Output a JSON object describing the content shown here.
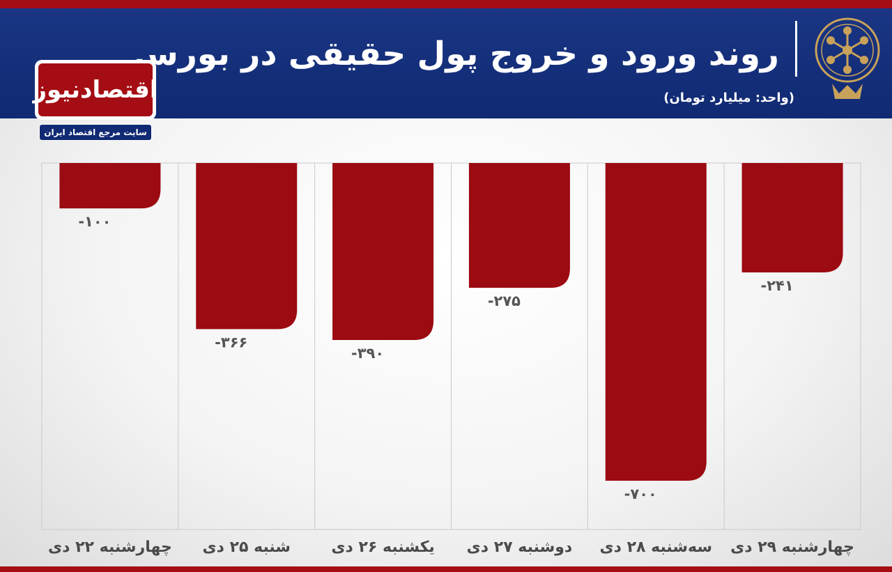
{
  "header": {
    "title": "روند ورود و خروج پول حقیقی در بورس",
    "unit": "(واحد: میلیارد تومان)"
  },
  "logo": {
    "name": "اقتصادنیوز",
    "tagline": "سایت مرجع اقتصاد ایران"
  },
  "colors": {
    "bar": "#9c0a12",
    "header": "#102a73",
    "accent": "#a50d14",
    "emblem": "#c8a25a"
  },
  "chart_data": {
    "type": "bar",
    "categories": [
      "چهارشنبه ۲۲ دی",
      "شنبه ۲۵ دی",
      "یکشنبه ۲۶ دی",
      "دوشنبه ۲۷ دی",
      "سه‌شنبه ۲۸ دی",
      "چهارشنبه ۲۹ دی"
    ],
    "values": [
      -100,
      -366,
      -390,
      -275,
      -700,
      -241
    ],
    "value_labels": [
      "-۱۰۰",
      "-۳۶۶",
      "-۳۹۰",
      "-۲۷۵",
      "-۷۰۰",
      "-۲۴۱"
    ],
    "ylim": [
      -700,
      0
    ],
    "title": "روند ورود و خروج پول حقیقی در بورس",
    "xlabel": "",
    "ylabel": "",
    "grid": true,
    "category_order": "left-to-right as listed"
  }
}
